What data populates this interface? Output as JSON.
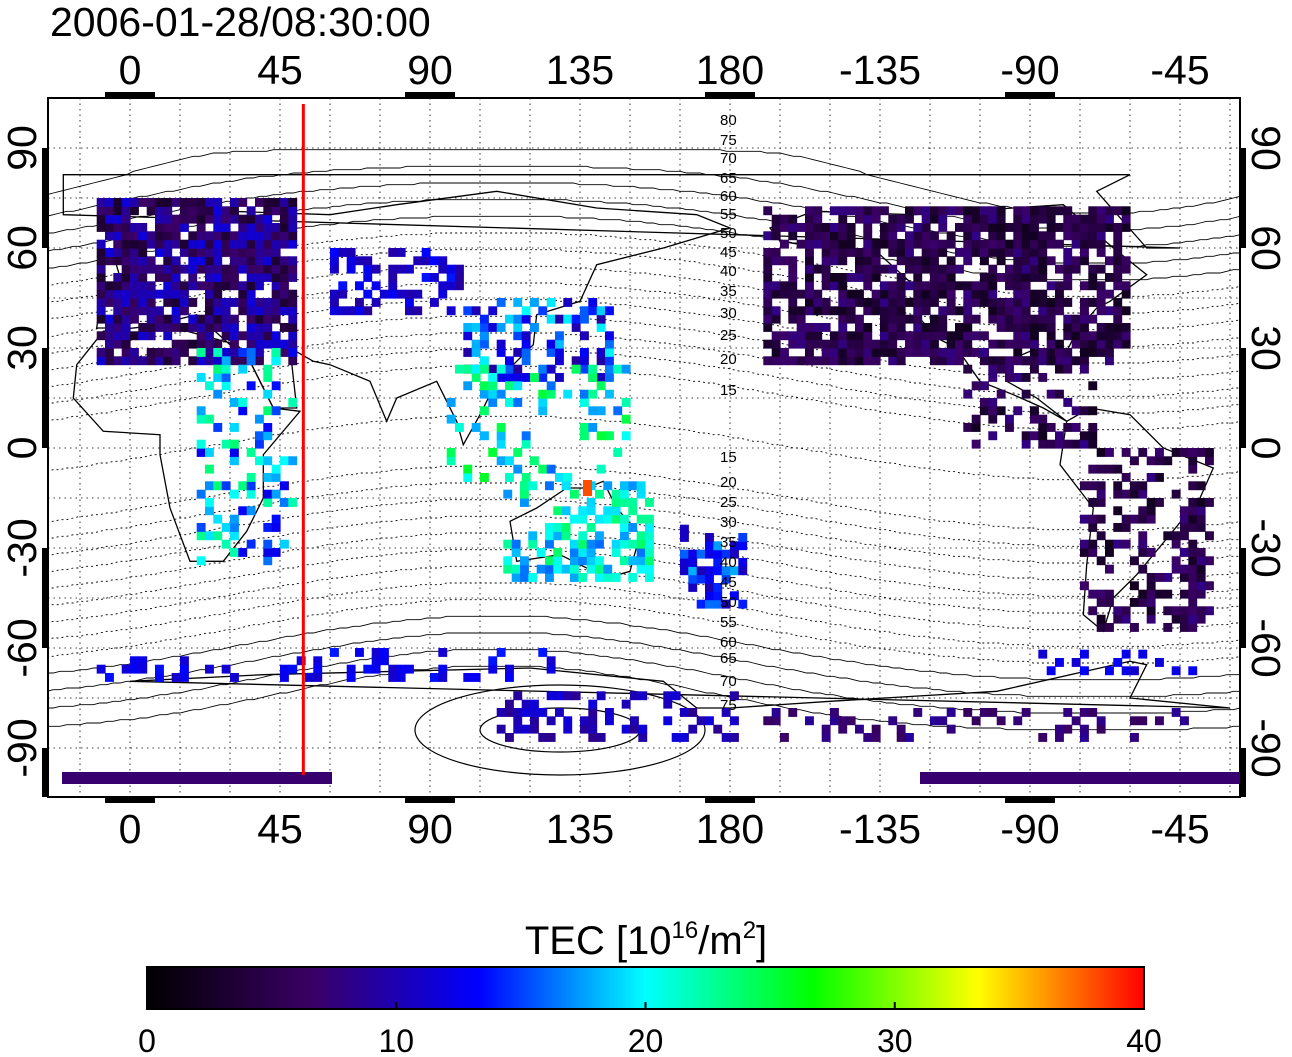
{
  "timestamp": "2006-01-28/08:30:00",
  "colorbar": {
    "label_prefix": "TEC  [10",
    "label_exp1": "16",
    "label_mid": "/m",
    "label_exp2": "2",
    "label_suffix": "]",
    "ticks": [
      "0",
      "10",
      "20",
      "30",
      "40"
    ],
    "range": [
      0,
      40
    ],
    "colors": [
      "#000000",
      "#3a0066",
      "#0000ff",
      "#00ffff",
      "#00ff00",
      "#ffff00",
      "#ff0000"
    ]
  },
  "axes": {
    "lon_ticks": [
      "0",
      "45",
      "90",
      "135",
      "180",
      "-135",
      "-90",
      "-45"
    ],
    "lat_ticks": [
      "90",
      "60",
      "30",
      "0",
      "-30",
      "-60",
      "-90"
    ]
  },
  "marker_line": {
    "longitude": 52,
    "color": "#ff0000"
  },
  "contour_labels": [
    "80",
    "75",
    "70",
    "65",
    "60",
    "55",
    "50",
    "45",
    "40",
    "35",
    "30",
    "25",
    "20",
    "15",
    "15",
    "20",
    "25",
    "30",
    "35",
    "40",
    "45",
    "50",
    "55",
    "60",
    "65",
    "70",
    "75"
  ]
}
